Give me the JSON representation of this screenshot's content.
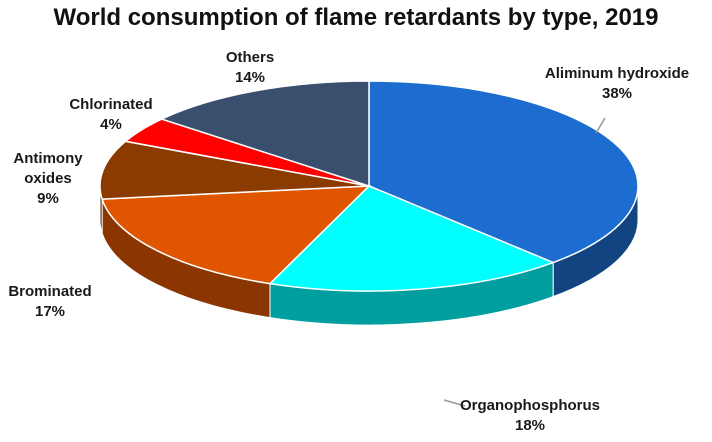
{
  "chart_data": {
    "type": "pie",
    "title": "World consumption of flame retardants by type, 2019",
    "three_d": true,
    "slices": [
      {
        "name": "Aliminum hydroxide",
        "value": 38,
        "label": "38%",
        "color": "#1d6dd0"
      },
      {
        "name": "Organophosphorus",
        "value": 18,
        "label": "18%",
        "color": "#00ffff"
      },
      {
        "name": "Brominated",
        "value": 17,
        "label": "17%",
        "color": "#e05500"
      },
      {
        "name": "Antimony oxides",
        "value": 9,
        "label": "9%",
        "color": "#8b3a00"
      },
      {
        "name": "Chlorinated",
        "value": 4,
        "label": "4%",
        "color": "#ff0000"
      },
      {
        "name": "Others",
        "value": 14,
        "label": "14%",
        "color": "#3a4e6e"
      }
    ]
  }
}
